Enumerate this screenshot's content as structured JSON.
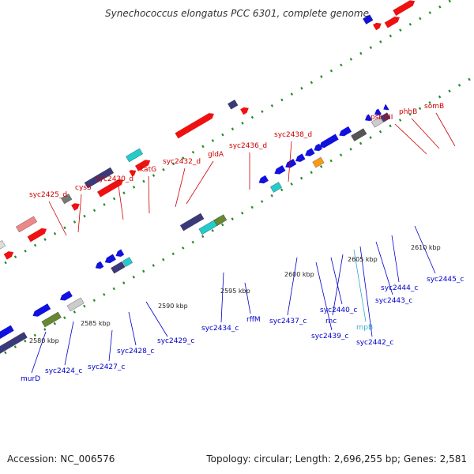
{
  "title": "Synechococcus elongatus PCC 6301, complete genome",
  "footer": {
    "accession": "Accession: NC_006576",
    "summary": "Topology: circular; Length: 2,696,255 bp; Genes: 2,581"
  },
  "colors": {
    "forward_label": "#cc0000",
    "reverse_label": "#0000cc",
    "rna_label": "#33aacc",
    "backbone": "#8a8a8a",
    "tick": "#2a8a2a"
  },
  "scale_labels": [
    "2580 kbp",
    "2585 kbp",
    "2590 kbp",
    "2595 kbp",
    "2600 kbp",
    "2605 kbp",
    "2610 kbp"
  ],
  "forward_genes": [
    "syc2425_d",
    "cysS",
    "syc2430_d",
    "katG",
    "syc2432_d",
    "gldA",
    "syc2436_d",
    "syc2438_d",
    "psbDII",
    "phhB",
    "somB"
  ],
  "reverse_genes": [
    "murD",
    "syc2424_c",
    "syc2427_c",
    "syc2428_c",
    "syc2429_c",
    "syc2434_c",
    "rffM",
    "syc2437_c",
    "syc2439_c",
    "syc2440_c",
    "rnc",
    "rnpB",
    "syc2442_c",
    "syc2443_c",
    "syc2444_c",
    "syc2445_c"
  ]
}
